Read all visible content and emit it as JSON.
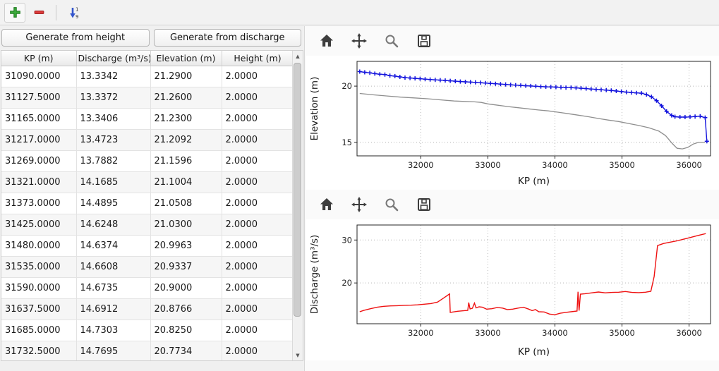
{
  "main_toolbar": {
    "buttons": [
      {
        "name": "add",
        "icon": "plus-icon",
        "color": "#3cab3c"
      },
      {
        "name": "remove",
        "icon": "minus-icon",
        "color": "#dd3d3d"
      },
      {
        "name": "sort-ascending-1-9",
        "icon": "sort-numeric-down-icon",
        "color": "#3355cc"
      }
    ]
  },
  "left_panel": {
    "buttons": [
      {
        "label": "Generate from height"
      },
      {
        "label": "Generate from discharge"
      }
    ],
    "table": {
      "columns": [
        "KP (m)",
        "Discharge (m³/s)",
        "Elevation (m)",
        "Height (m)"
      ],
      "rows": [
        [
          "31090.0000",
          "13.3342",
          "21.2900",
          "2.0000"
        ],
        [
          "31127.5000",
          "13.3372",
          "21.2600",
          "2.0000"
        ],
        [
          "31165.0000",
          "13.3406",
          "21.2300",
          "2.0000"
        ],
        [
          "31217.0000",
          "13.4723",
          "21.2092",
          "2.0000"
        ],
        [
          "31269.0000",
          "13.7882",
          "21.1596",
          "2.0000"
        ],
        [
          "31321.0000",
          "14.1685",
          "21.1004",
          "2.0000"
        ],
        [
          "31373.0000",
          "14.4895",
          "21.0508",
          "2.0000"
        ],
        [
          "31425.0000",
          "14.6248",
          "21.0300",
          "2.0000"
        ],
        [
          "31480.0000",
          "14.6374",
          "20.9963",
          "2.0000"
        ],
        [
          "31535.0000",
          "14.6608",
          "20.9337",
          "2.0000"
        ],
        [
          "31590.0000",
          "14.6735",
          "20.9000",
          "2.0000"
        ],
        [
          "31637.5000",
          "14.6912",
          "20.8766",
          "2.0000"
        ],
        [
          "31685.0000",
          "14.7303",
          "20.8250",
          "2.0000"
        ],
        [
          "31732.5000",
          "14.7695",
          "20.7734",
          "2.0000"
        ]
      ]
    }
  },
  "chart_toolbar": {
    "buttons": [
      "home",
      "pan",
      "zoom",
      "save"
    ]
  },
  "chart_data": [
    {
      "id": "elevation-profile",
      "type": "line",
      "xlabel": "KP (m)",
      "ylabel": "Elevation (m)",
      "xlim": [
        31050,
        36320
      ],
      "ylim": [
        13.8,
        22.2
      ],
      "xticks": [
        32000,
        33000,
        34000,
        35000,
        36000
      ],
      "yticks": [
        15,
        20
      ],
      "grid": true,
      "legend": "none",
      "series": [
        {
          "name": "water-surface-elevation",
          "color": "#1414dd",
          "marker": "plus",
          "width": 1.4,
          "points": [
            [
              31090,
              21.29
            ],
            [
              31165,
              21.23
            ],
            [
              31240,
              21.18
            ],
            [
              31315,
              21.11
            ],
            [
              31390,
              21.06
            ],
            [
              31465,
              21.03
            ],
            [
              31540,
              20.93
            ],
            [
              31615,
              20.89
            ],
            [
              31690,
              20.82
            ],
            [
              31765,
              20.75
            ],
            [
              31840,
              20.72
            ],
            [
              31915,
              20.69
            ],
            [
              31990,
              20.66
            ],
            [
              32065,
              20.62
            ],
            [
              32140,
              20.59
            ],
            [
              32215,
              20.56
            ],
            [
              32290,
              20.53
            ],
            [
              32365,
              20.5
            ],
            [
              32440,
              20.47
            ],
            [
              32515,
              20.44
            ],
            [
              32590,
              20.41
            ],
            [
              32665,
              20.38
            ],
            [
              32740,
              20.36
            ],
            [
              32815,
              20.33
            ],
            [
              32890,
              20.3
            ],
            [
              32965,
              20.27
            ],
            [
              33040,
              20.24
            ],
            [
              33115,
              20.21
            ],
            [
              33190,
              20.18
            ],
            [
              33265,
              20.15
            ],
            [
              33340,
              20.12
            ],
            [
              33415,
              20.09
            ],
            [
              33490,
              20.06
            ],
            [
              33565,
              20.03
            ],
            [
              33640,
              20.01
            ],
            [
              33715,
              19.99
            ],
            [
              33790,
              19.96
            ],
            [
              33865,
              19.94
            ],
            [
              33940,
              19.93
            ],
            [
              34015,
              19.91
            ],
            [
              34090,
              19.89
            ],
            [
              34165,
              19.87
            ],
            [
              34240,
              19.86
            ],
            [
              34315,
              19.84
            ],
            [
              34390,
              19.81
            ],
            [
              34465,
              19.78
            ],
            [
              34540,
              19.74
            ],
            [
              34615,
              19.71
            ],
            [
              34690,
              19.68
            ],
            [
              34765,
              19.64
            ],
            [
              34840,
              19.61
            ],
            [
              34915,
              19.57
            ],
            [
              34990,
              19.52
            ],
            [
              35065,
              19.47
            ],
            [
              35140,
              19.43
            ],
            [
              35215,
              19.4
            ],
            [
              35290,
              19.37
            ],
            [
              35365,
              19.25
            ],
            [
              35440,
              19.05
            ],
            [
              35515,
              18.7
            ],
            [
              35590,
              18.25
            ],
            [
              35665,
              17.75
            ],
            [
              35740,
              17.4
            ],
            [
              35790,
              17.28
            ],
            [
              35865,
              17.25
            ],
            [
              35940,
              17.25
            ],
            [
              36015,
              17.26
            ],
            [
              36090,
              17.3
            ],
            [
              36165,
              17.32
            ],
            [
              36240,
              17.2
            ],
            [
              36265,
              15.1
            ]
          ]
        },
        {
          "name": "bed-elevation",
          "color": "#8f8f8f",
          "marker": "none",
          "width": 1.3,
          "points": [
            [
              31090,
              19.35
            ],
            [
              31300,
              19.22
            ],
            [
              31500,
              19.12
            ],
            [
              31700,
              19.02
            ],
            [
              31900,
              18.95
            ],
            [
              32100,
              18.88
            ],
            [
              32300,
              18.78
            ],
            [
              32500,
              18.68
            ],
            [
              32650,
              18.64
            ],
            [
              32800,
              18.6
            ],
            [
              32900,
              18.55
            ],
            [
              33000,
              18.42
            ],
            [
              33150,
              18.3
            ],
            [
              33300,
              18.18
            ],
            [
              33450,
              18.08
            ],
            [
              33600,
              17.98
            ],
            [
              33750,
              17.88
            ],
            [
              33900,
              17.8
            ],
            [
              34050,
              17.68
            ],
            [
              34200,
              17.55
            ],
            [
              34350,
              17.42
            ],
            [
              34500,
              17.28
            ],
            [
              34650,
              17.12
            ],
            [
              34800,
              16.98
            ],
            [
              34950,
              16.85
            ],
            [
              35100,
              16.68
            ],
            [
              35250,
              16.5
            ],
            [
              35400,
              16.3
            ],
            [
              35550,
              16.0
            ],
            [
              35650,
              15.6
            ],
            [
              35750,
              14.9
            ],
            [
              35820,
              14.48
            ],
            [
              35900,
              14.42
            ],
            [
              35980,
              14.55
            ],
            [
              36060,
              14.85
            ],
            [
              36140,
              15.0
            ],
            [
              36240,
              15.0
            ]
          ]
        }
      ]
    },
    {
      "id": "discharge-profile",
      "type": "line",
      "xlabel": "KP (m)",
      "ylabel": "Discharge (m³/s)",
      "xlim": [
        31050,
        36320
      ],
      "ylim": [
        10.5,
        33.5
      ],
      "xticks": [
        32000,
        33000,
        34000,
        35000,
        36000
      ],
      "yticks": [
        20,
        30
      ],
      "grid": true,
      "legend": "none",
      "series": [
        {
          "name": "discharge",
          "color": "#ee1111",
          "marker": "none",
          "width": 1.4,
          "points": [
            [
              31090,
              13.3
            ],
            [
              31150,
              13.6
            ],
            [
              31250,
              14.0
            ],
            [
              31350,
              14.35
            ],
            [
              31450,
              14.55
            ],
            [
              31550,
              14.65
            ],
            [
              31650,
              14.7
            ],
            [
              31750,
              14.78
            ],
            [
              31850,
              14.82
            ],
            [
              31950,
              14.9
            ],
            [
              32050,
              15.05
            ],
            [
              32150,
              15.2
            ],
            [
              32250,
              15.55
            ],
            [
              32350,
              16.6
            ],
            [
              32430,
              17.45
            ],
            [
              32440,
              13.15
            ],
            [
              32550,
              13.4
            ],
            [
              32650,
              13.55
            ],
            [
              32700,
              13.6
            ],
            [
              32715,
              15.45
            ],
            [
              32735,
              13.95
            ],
            [
              32770,
              14.1
            ],
            [
              32800,
              15.3
            ],
            [
              32825,
              14.2
            ],
            [
              32870,
              14.45
            ],
            [
              32920,
              14.35
            ],
            [
              32980,
              13.9
            ],
            [
              33060,
              14.0
            ],
            [
              33140,
              14.3
            ],
            [
              33220,
              14.15
            ],
            [
              33290,
              13.8
            ],
            [
              33370,
              13.9
            ],
            [
              33450,
              14.15
            ],
            [
              33530,
              14.35
            ],
            [
              33610,
              13.9
            ],
            [
              33660,
              13.55
            ],
            [
              33710,
              13.8
            ],
            [
              33760,
              13.3
            ],
            [
              33840,
              13.25
            ],
            [
              33920,
              12.75
            ],
            [
              34000,
              12.6
            ],
            [
              34080,
              12.95
            ],
            [
              34160,
              13.15
            ],
            [
              34240,
              13.3
            ],
            [
              34330,
              13.45
            ],
            [
              34345,
              17.95
            ],
            [
              34360,
              13.55
            ],
            [
              34380,
              17.4
            ],
            [
              34450,
              17.5
            ],
            [
              34550,
              17.7
            ],
            [
              34650,
              17.9
            ],
            [
              34750,
              17.7
            ],
            [
              34850,
              17.8
            ],
            [
              34950,
              17.85
            ],
            [
              35050,
              18.0
            ],
            [
              35150,
              17.8
            ],
            [
              35250,
              17.75
            ],
            [
              35350,
              17.85
            ],
            [
              35430,
              18.05
            ],
            [
              35480,
              21.5
            ],
            [
              35530,
              28.7
            ],
            [
              35620,
              29.2
            ],
            [
              35720,
              29.5
            ],
            [
              35820,
              29.8
            ],
            [
              35920,
              30.2
            ],
            [
              36020,
              30.6
            ],
            [
              36120,
              31.0
            ],
            [
              36250,
              31.5
            ]
          ]
        }
      ]
    }
  ]
}
